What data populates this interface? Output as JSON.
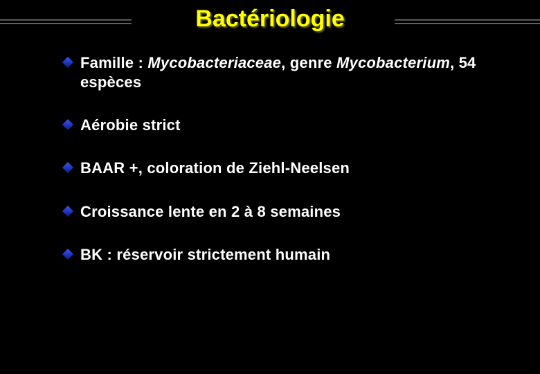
{
  "slide": {
    "title": "Bactériologie",
    "title_color": "#ffff00",
    "title_shadow": "#666600",
    "background_color": "#000000",
    "text_color": "#ffffff",
    "bullet_color_top": "#3a58ff",
    "bullet_color_bottom": "#0a1a80",
    "rule_color": "#8f8f8f",
    "title_fontsize": 34,
    "body_fontsize": 22,
    "bullets": [
      {
        "segments": [
          {
            "text": "Famille : ",
            "italic": false
          },
          {
            "text": "Mycobacteriaceae",
            "italic": true
          },
          {
            "text": ", genre ",
            "italic": false
          },
          {
            "text": "Mycobacterium",
            "italic": true
          },
          {
            "text": ", 54 espèces",
            "italic": false
          }
        ]
      },
      {
        "segments": [
          {
            "text": "Aérobie strict",
            "italic": false
          }
        ]
      },
      {
        "segments": [
          {
            "text": "BAAR +, coloration de Ziehl-Neelsen",
            "italic": false
          }
        ]
      },
      {
        "segments": [
          {
            "text": "Croissance lente en 2 à 8 semaines",
            "italic": false
          }
        ]
      },
      {
        "segments": [
          {
            "text": "BK : réservoir strictement humain",
            "italic": false
          }
        ]
      }
    ]
  }
}
